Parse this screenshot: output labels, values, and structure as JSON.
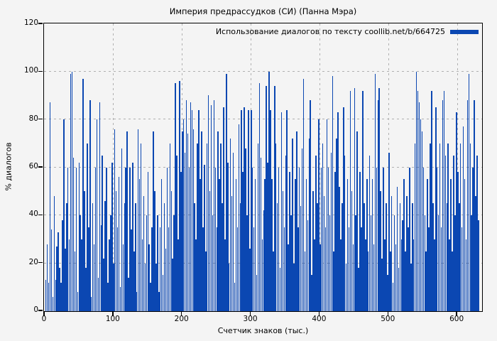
{
  "title": "Империя предрассудков (СИ) (Панна Мэра)",
  "legend": {
    "label": "Использование диалогов по тексту coollib.net/b/664725",
    "swatch_color": "#0b47b2"
  },
  "colors": {
    "background": "#f4f4f4",
    "bar": "#0b47b2",
    "grid": "#b0b0b0",
    "border": "#000000"
  },
  "chart_data": {
    "type": "bar",
    "title": "Империя предрассудков (СИ) (Панна Мэра)",
    "xlabel": "Счетчик знаков (тыс.)",
    "ylabel": "% диалогов",
    "xlim": [
      0,
      636
    ],
    "ylim": [
      0,
      120
    ],
    "x_ticks": [
      0,
      100,
      200,
      300,
      400,
      500,
      600
    ],
    "y_ticks": [
      0,
      20,
      40,
      60,
      80,
      100,
      120
    ],
    "grid": true,
    "legend_position": "top-right",
    "x_start": 2,
    "x_step": 2,
    "series": [
      {
        "name": "Использование диалогов по тексту coollib.net/b/664725",
        "color": "#0b47b2",
        "values": [
          13,
          28,
          12,
          87,
          34,
          6,
          48,
          13,
          27,
          33,
          18,
          12,
          38,
          80,
          26,
          45,
          60,
          30,
          99,
          100,
          64,
          25,
          60,
          8,
          62,
          40,
          30,
          97,
          50,
          18,
          70,
          35,
          88,
          6,
          45,
          28,
          60,
          80,
          14,
          87,
          36,
          65,
          22,
          46,
          60,
          12,
          30,
          40,
          62,
          20,
          76,
          50,
          35,
          56,
          10,
          68,
          28,
          45,
          60,
          75,
          14,
          60,
          34,
          62,
          25,
          45,
          8,
          76,
          55,
          70,
          30,
          48,
          20,
          40,
          58,
          28,
          12,
          35,
          75,
          50,
          20,
          40,
          8,
          35,
          55,
          15,
          45,
          26,
          60,
          35,
          70,
          50,
          22,
          40,
          95,
          65,
          30,
          96,
          58,
          75,
          80,
          66,
          88,
          74,
          60,
          87,
          84,
          76,
          45,
          30,
          70,
          84,
          55,
          75,
          35,
          61,
          25,
          70,
          90,
          50,
          86,
          40,
          88,
          60,
          35,
          75,
          55,
          70,
          45,
          85,
          30,
          99,
          62,
          20,
          72,
          48,
          66,
          12,
          55,
          35,
          78,
          45,
          84,
          58,
          85,
          68,
          40,
          84,
          26,
          84,
          60,
          35,
          55,
          15,
          70,
          95,
          64,
          30,
          42,
          55,
          94,
          62,
          100,
          84,
          55,
          25,
          94,
          70,
          45,
          60,
          18,
          83,
          50,
          35,
          65,
          84,
          28,
          58,
          40,
          72,
          20,
          55,
          75,
          35,
          60,
          44,
          68,
          97,
          25,
          55,
          38,
          72,
          88,
          15,
          50,
          30,
          65,
          45,
          80,
          28,
          60,
          70,
          48,
          35,
          80,
          60,
          40,
          66,
          98,
          25,
          58,
          72,
          83,
          52,
          30,
          45,
          85,
          65,
          20,
          55,
          35,
          92,
          50,
          28,
          93,
          40,
          75,
          18,
          58,
          35,
          92,
          45,
          30,
          55,
          25,
          65,
          40,
          55,
          28,
          99,
          60,
          88,
          93,
          50,
          22,
          60,
          30,
          45,
          15,
          66,
          25,
          48,
          12,
          40,
          28,
          52,
          18,
          45,
          30,
          38,
          55,
          25,
          48,
          35,
          60,
          20,
          45,
          30,
          70,
          100,
          92,
          87,
          80,
          75,
          60,
          40,
          25,
          55,
          35,
          70,
          92,
          45,
          30,
          85,
          60,
          40,
          70,
          35,
          88,
          92,
          65,
          45,
          70,
          30,
          55,
          25,
          65,
          40,
          83,
          58,
          45,
          70,
          35,
          77,
          55,
          30,
          88,
          99,
          70,
          40,
          60,
          88,
          48,
          65,
          38
        ]
      }
    ]
  },
  "x_axis": {
    "label": "Счетчик знаков (тыс.)"
  },
  "y_axis": {
    "label": "% диалогов"
  }
}
